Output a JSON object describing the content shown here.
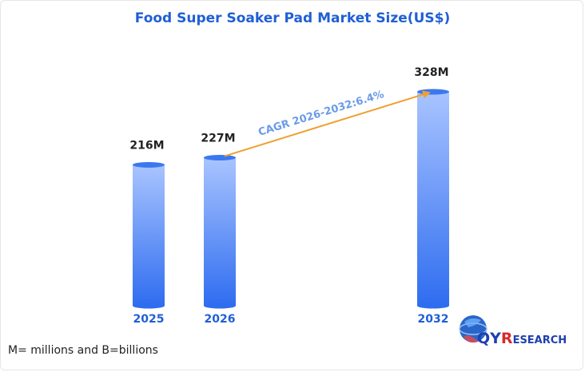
{
  "chart_data": {
    "type": "bar",
    "title": "Food Super Soaker Pad Market Size(US$)",
    "categories": [
      "2025",
      "2026",
      "2032"
    ],
    "values": [
      216,
      227,
      328
    ],
    "value_labels": [
      "216M",
      "227M",
      "328M"
    ],
    "unit": "M",
    "annotation": "CAGR 2026-2032:6.4%",
    "xlabel": "",
    "ylabel": "",
    "grid": false,
    "legend": "none"
  },
  "footnote": "M= millions and B=billions",
  "logo": {
    "q": "Q",
    "y": "Y",
    "r": "R",
    "rest": "ESEARCH"
  },
  "colors": {
    "title": "#1f5fd6",
    "bar_top": "#a9c4ff",
    "bar_bottom": "#2f6df0",
    "bar_cap": "#3b78f0",
    "category_label": "#1f5fd6",
    "arrow": "#f0a030",
    "annotation": "#6a9be8"
  }
}
